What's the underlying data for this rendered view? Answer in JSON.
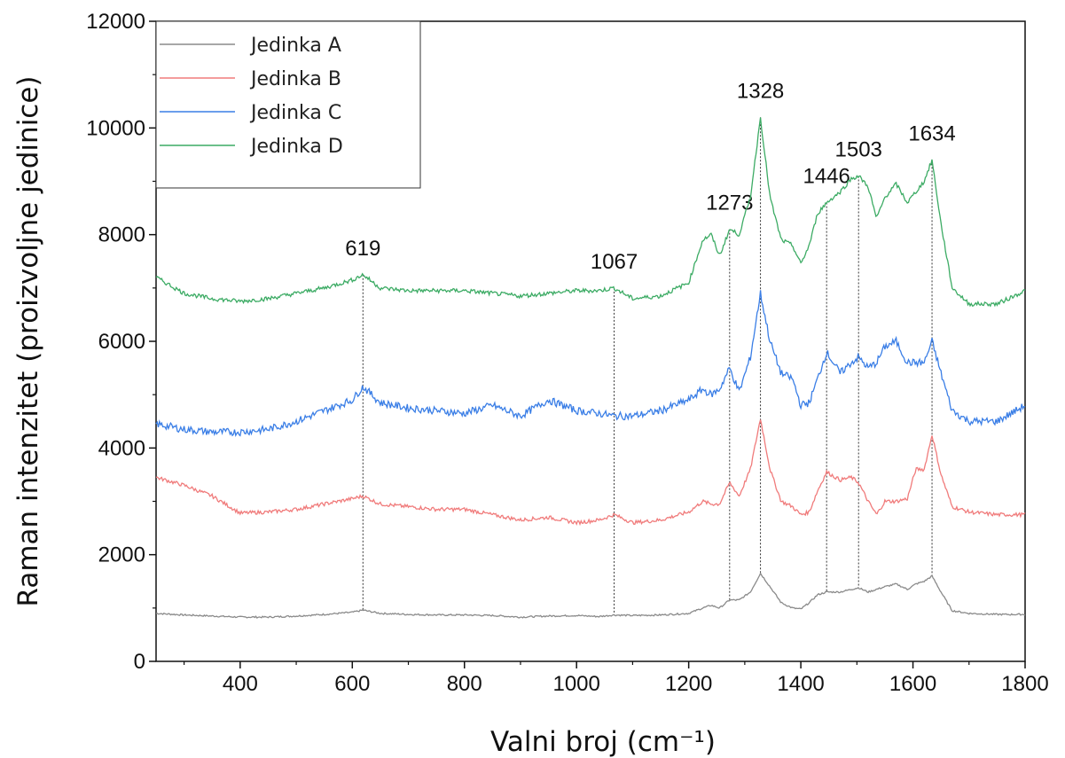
{
  "chart_data": {
    "type": "line",
    "title": "",
    "xlabel": "Valni broj (cm⁻¹)",
    "ylabel": "Raman intenzitet (proizvoljne jedinice)",
    "xlim": [
      250,
      1800
    ],
    "ylim": [
      0,
      12000
    ],
    "x_ticks": [
      400,
      600,
      800,
      1000,
      1200,
      1400,
      1600,
      1800
    ],
    "y_ticks": [
      0,
      2000,
      4000,
      6000,
      8000,
      10000,
      12000
    ],
    "x_tick_labels": [
      "400",
      "600",
      "800",
      "1000",
      "1200",
      "1400",
      "1600",
      "1800"
    ],
    "y_tick_labels": [
      "0",
      "2000",
      "4000",
      "6000",
      "8000",
      "10000",
      "12000"
    ],
    "grid": false,
    "legend_position": "top-left",
    "x": [
      250,
      300,
      350,
      400,
      450,
      500,
      550,
      600,
      619,
      650,
      700,
      750,
      800,
      850,
      900,
      950,
      1000,
      1040,
      1067,
      1100,
      1150,
      1200,
      1225,
      1240,
      1255,
      1273,
      1290,
      1310,
      1328,
      1345,
      1365,
      1385,
      1400,
      1415,
      1430,
      1446,
      1470,
      1490,
      1503,
      1520,
      1535,
      1550,
      1570,
      1590,
      1605,
      1620,
      1634,
      1650,
      1670,
      1700,
      1750,
      1800
    ],
    "series": [
      {
        "name": "Jedinka A",
        "color": "#8a8a8a",
        "values": [
          900,
          870,
          850,
          830,
          830,
          850,
          880,
          920,
          960,
          900,
          880,
          870,
          870,
          860,
          830,
          850,
          860,
          840,
          870,
          860,
          870,
          900,
          1000,
          1050,
          1000,
          1150,
          1150,
          1300,
          1650,
          1400,
          1100,
          1000,
          980,
          1100,
          1250,
          1300,
          1300,
          1350,
          1380,
          1300,
          1350,
          1400,
          1450,
          1350,
          1450,
          1500,
          1600,
          1300,
          950,
          900,
          880,
          880
        ]
      },
      {
        "name": "Jedinka B",
        "color": "#f07b7b",
        "values": [
          3450,
          3300,
          3100,
          2780,
          2800,
          2850,
          2950,
          3050,
          3100,
          2950,
          2900,
          2850,
          2850,
          2750,
          2650,
          2700,
          2600,
          2650,
          2750,
          2600,
          2650,
          2800,
          3000,
          2950,
          2950,
          3350,
          3100,
          3600,
          4550,
          3600,
          3000,
          2900,
          2750,
          2800,
          3200,
          3550,
          3400,
          3450,
          3350,
          3000,
          2750,
          3000,
          3000,
          3050,
          3600,
          3600,
          4250,
          3500,
          2900,
          2800,
          2750,
          2750
        ]
      },
      {
        "name": "Jedinka C",
        "color": "#3a7ee6",
        "values": [
          4450,
          4350,
          4300,
          4300,
          4350,
          4500,
          4700,
          4900,
          5150,
          4850,
          4750,
          4700,
          4650,
          4800,
          4600,
          4900,
          4700,
          4650,
          4600,
          4600,
          4700,
          4900,
          5100,
          5000,
          5100,
          5500,
          5050,
          5700,
          6900,
          6000,
          5400,
          5300,
          4800,
          4850,
          5300,
          5800,
          5400,
          5600,
          5700,
          5500,
          5600,
          5900,
          6000,
          5600,
          5600,
          5600,
          6000,
          5400,
          4700,
          4500,
          4500,
          4800
        ]
      },
      {
        "name": "Jedinka D",
        "color": "#3cab64",
        "values": [
          7200,
          6900,
          6800,
          6750,
          6800,
          6900,
          7000,
          7150,
          7250,
          7000,
          6950,
          6950,
          6950,
          6900,
          6850,
          6900,
          6950,
          6950,
          7000,
          6800,
          6850,
          7100,
          7900,
          8000,
          7600,
          8100,
          8000,
          8700,
          10200,
          8700,
          7900,
          7800,
          7450,
          7800,
          8400,
          8600,
          8800,
          9050,
          9100,
          8900,
          8300,
          8700,
          8950,
          8600,
          8800,
          9000,
          9400,
          8200,
          7000,
          6700,
          6700,
          6950
        ]
      }
    ],
    "peak_markers": [
      {
        "label": "619",
        "x": 619,
        "y_top": 7250,
        "y_bottom": 960
      },
      {
        "label": "1067",
        "x": 1067,
        "y_top": 7000,
        "y_bottom": 870
      },
      {
        "label": "1273",
        "x": 1273,
        "y_top": 8100,
        "y_bottom": 1150
      },
      {
        "label": "1328",
        "x": 1328,
        "y_top": 10200,
        "y_bottom": 1650
      },
      {
        "label": "1446",
        "x": 1446,
        "y_top": 8600,
        "y_bottom": 1300
      },
      {
        "label": "1503",
        "x": 1503,
        "y_top": 9100,
        "y_bottom": 1380
      },
      {
        "label": "1634",
        "x": 1634,
        "y_top": 9400,
        "y_bottom": 1600
      }
    ]
  }
}
